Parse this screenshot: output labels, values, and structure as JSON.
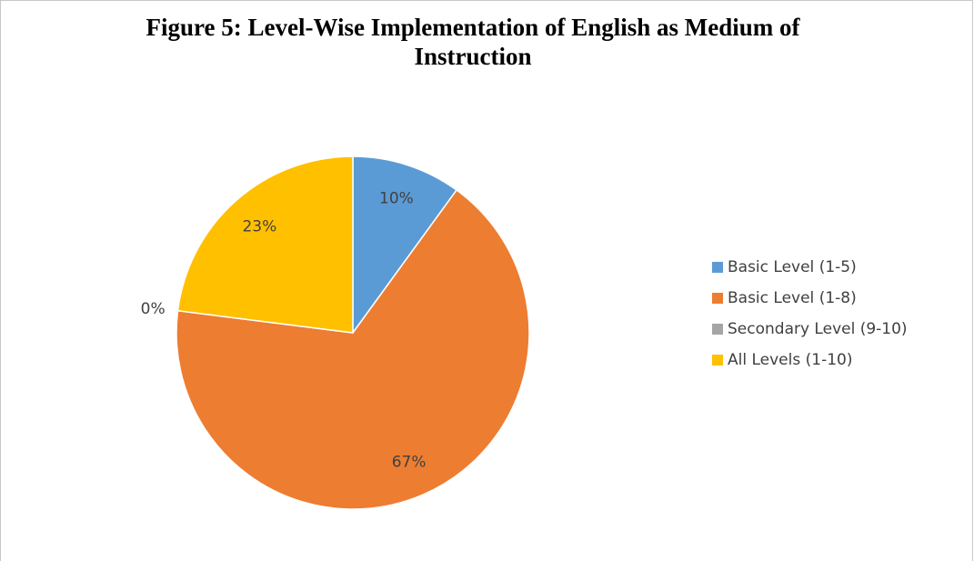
{
  "chart_data": {
    "type": "pie",
    "title": "Figure 5: Level-Wise Implementation of English as Medium of Instruction",
    "categories": [
      "Basic Level (1-5)",
      "Basic Level (1-8)",
      "Secondary Level (9-10)",
      "All Levels (1-10)"
    ],
    "values": [
      10,
      67,
      0,
      23
    ],
    "value_labels": [
      "10%",
      "67%",
      "0%",
      "23%"
    ],
    "colors": [
      "#5b9bd5",
      "#ed7d31",
      "#a5a5a5",
      "#ffc000"
    ],
    "legend": "right"
  }
}
